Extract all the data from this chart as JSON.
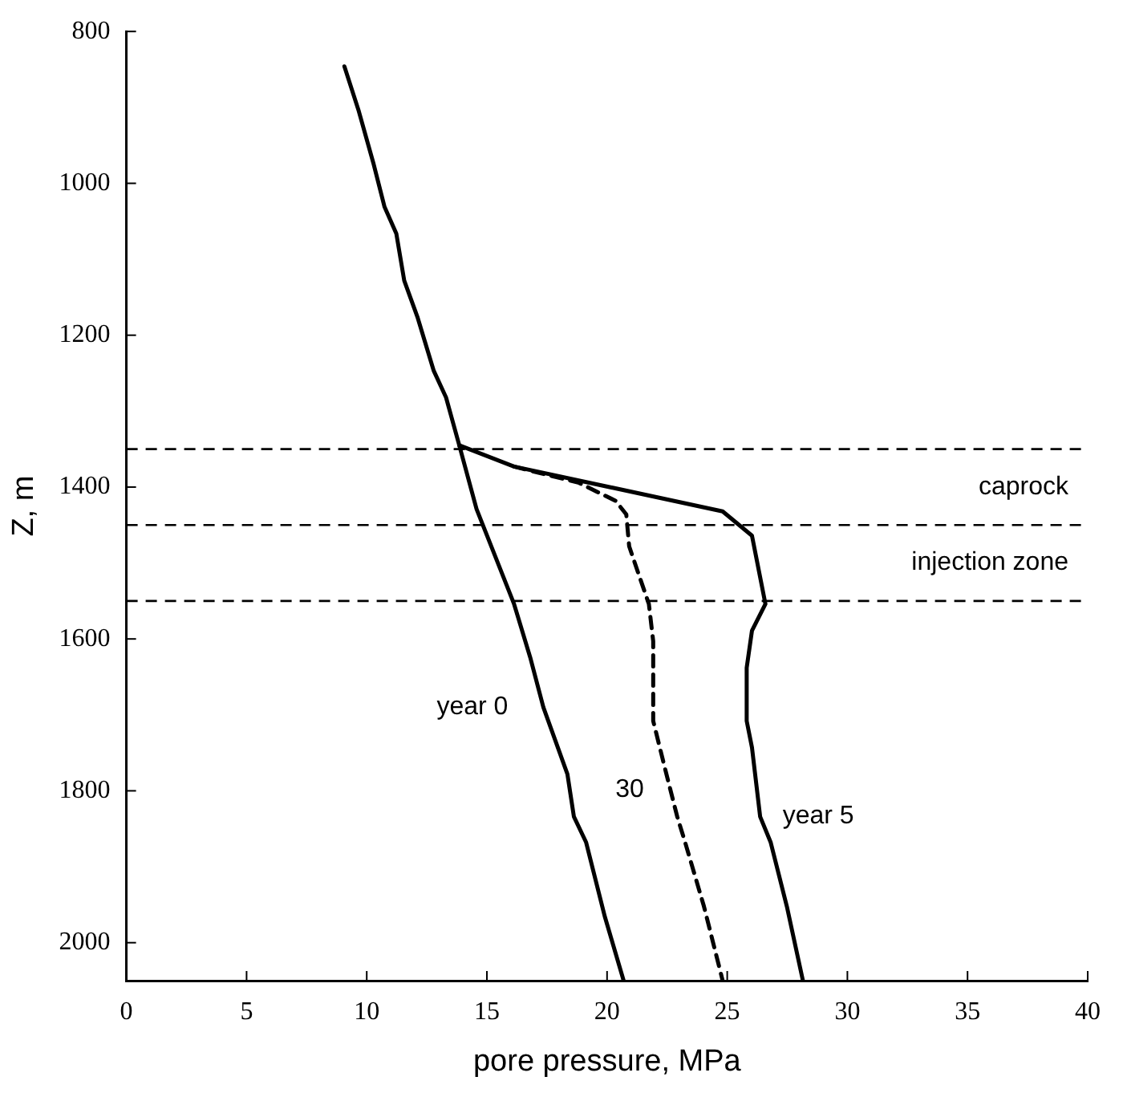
{
  "chart_data": {
    "type": "line",
    "xlabel": "pore pressure, MPa",
    "ylabel": "Z, m",
    "xlim": [
      0,
      40
    ],
    "xticks": [
      0,
      5,
      10,
      15,
      20,
      25,
      30,
      35,
      40
    ],
    "ylim": [
      2050,
      800
    ],
    "yticks": [
      800,
      1000,
      1200,
      1400,
      1600,
      1800,
      2000
    ],
    "grid": false,
    "legend": false,
    "marker": "none",
    "series": [
      {
        "name": "year 0",
        "color": "#000000",
        "line_style": "solid",
        "x": [
          9.07,
          9.67,
          10.29,
          10.74,
          11.23,
          11.56,
          12.12,
          12.79,
          13.3,
          13.85,
          14.57,
          16.13,
          16.8,
          17.35,
          18.35,
          18.62,
          19.13,
          19.91,
          20.69
        ],
        "values": [
          846,
          905,
          975,
          1031,
          1066,
          1128,
          1177,
          1247,
          1282,
          1345,
          1429,
          1554,
          1624,
          1690,
          1778,
          1834,
          1868,
          1966,
          2050
        ]
      },
      {
        "name": "year 5",
        "color": "#000000",
        "line_style": "solid",
        "x": [
          13.85,
          16.13,
          24.81,
          26.03,
          26.59,
          26.03,
          25.81,
          25.81,
          26.03,
          26.37,
          26.81,
          27.48,
          28.15
        ],
        "values": [
          1345,
          1373,
          1432,
          1464,
          1554,
          1589,
          1638,
          1708,
          1743,
          1834,
          1868,
          1952,
          2050
        ]
      },
      {
        "name": "30",
        "color": "#000000",
        "line_style": "dashed",
        "x": [
          16.13,
          17.01,
          18.8,
          20.35,
          20.8,
          20.92,
          21.36,
          21.74,
          21.92,
          21.92,
          22.47,
          22.92,
          23.25,
          24.03,
          24.81
        ],
        "values": [
          1373,
          1380,
          1394,
          1418,
          1436,
          1478,
          1519,
          1554,
          1603,
          1708,
          1778,
          1834,
          1868,
          1952,
          2050
        ]
      }
    ],
    "ref_lines": [
      {
        "axis": "y",
        "value": 1350,
        "line_style": "dashed",
        "color": "#000000"
      },
      {
        "axis": "y",
        "value": 1450,
        "line_style": "dashed",
        "color": "#000000"
      },
      {
        "axis": "y",
        "value": 1550,
        "line_style": "dashed",
        "color": "#000000"
      }
    ],
    "annotations": [
      "caprock",
      "injection zone"
    ]
  }
}
